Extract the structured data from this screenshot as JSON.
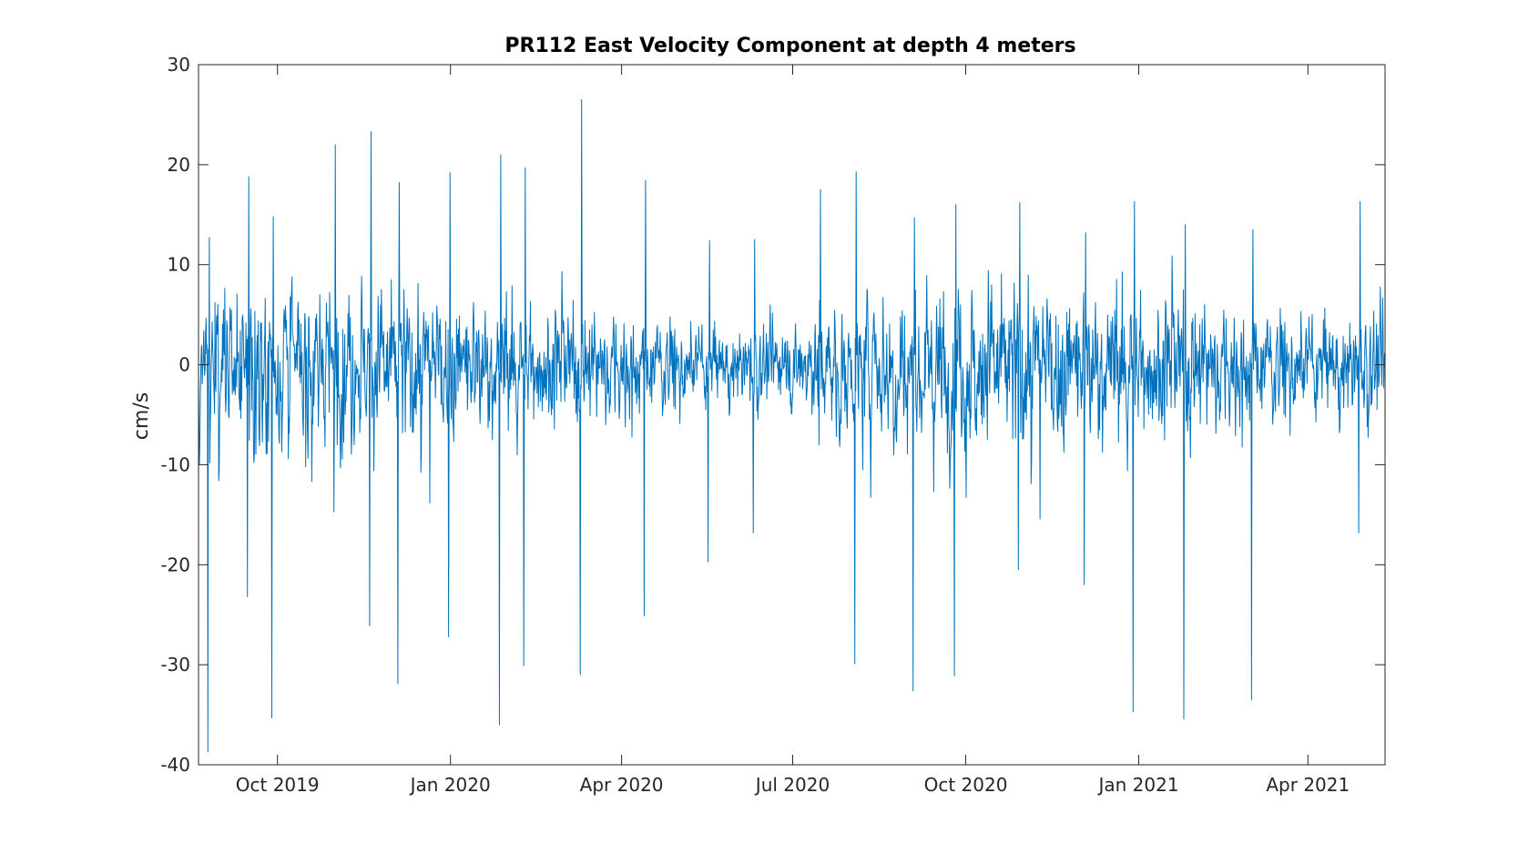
{
  "chart_data": {
    "type": "line",
    "title": "PR112 East Velocity Component at depth 4 meters",
    "xlabel": "",
    "ylabel": "cm/s",
    "ylim": [
      -40,
      30
    ],
    "yticks": [
      -40,
      -30,
      -20,
      -10,
      0,
      10,
      20,
      30
    ],
    "xlim": [
      "2019-08-20",
      "2021-05-12"
    ],
    "xticks": [
      {
        "date": "2019-10-01",
        "label": "Oct 2019"
      },
      {
        "date": "2020-01-01",
        "label": "Jan 2020"
      },
      {
        "date": "2020-04-01",
        "label": "Apr 2020"
      },
      {
        "date": "2020-07-01",
        "label": "Jul 2020"
      },
      {
        "date": "2020-10-01",
        "label": "Oct 2020"
      },
      {
        "date": "2021-01-01",
        "label": "Jan 2021"
      },
      {
        "date": "2021-04-01",
        "label": "Apr 2021"
      }
    ],
    "grid": false,
    "legend": "none",
    "series": [
      {
        "color": "#0072bd",
        "sampling": "hourly",
        "start": "2019-08-20",
        "end": "2021-05-12",
        "mean": 0,
        "max": 26.5,
        "min": -38.7,
        "envelope": [
          {
            "date": "2019-08-25",
            "low": -38.7,
            "high": 12.7
          },
          {
            "date": "2019-09-15",
            "low": -23.2,
            "high": 18.8
          },
          {
            "date": "2019-09-28",
            "low": -35.3,
            "high": 14.8
          },
          {
            "date": "2019-10-31",
            "low": -14.7,
            "high": 22.0
          },
          {
            "date": "2019-11-19",
            "low": -26.1,
            "high": 23.3
          },
          {
            "date": "2019-12-04",
            "low": -31.9,
            "high": 18.2
          },
          {
            "date": "2019-12-31",
            "low": -27.2,
            "high": 19.2
          },
          {
            "date": "2020-01-27",
            "low": -36.0,
            "high": 21.0
          },
          {
            "date": "2020-02-09",
            "low": -30.1,
            "high": 19.7
          },
          {
            "date": "2020-03-10",
            "low": -31.0,
            "high": 26.5
          },
          {
            "date": "2020-04-13",
            "low": -25.1,
            "high": 18.4
          },
          {
            "date": "2020-05-17",
            "low": -19.7,
            "high": 12.4
          },
          {
            "date": "2020-06-10",
            "low": -16.8,
            "high": 12.5
          },
          {
            "date": "2020-07-15",
            "low": -8.0,
            "high": 17.5
          },
          {
            "date": "2020-08-03",
            "low": -29.9,
            "high": 19.3
          },
          {
            "date": "2020-09-03",
            "low": -32.6,
            "high": 14.7
          },
          {
            "date": "2020-09-25",
            "low": -31.1,
            "high": 16.0
          },
          {
            "date": "2020-10-29",
            "low": -20.5,
            "high": 16.2
          },
          {
            "date": "2020-12-03",
            "low": -22.0,
            "high": 13.2
          },
          {
            "date": "2020-12-29",
            "low": -34.7,
            "high": 16.3
          },
          {
            "date": "2021-01-25",
            "low": -35.4,
            "high": 14.0
          },
          {
            "date": "2021-03-02",
            "low": -33.5,
            "high": 13.5
          },
          {
            "date": "2021-04-28",
            "low": -16.8,
            "high": 16.3
          }
        ]
      }
    ]
  }
}
